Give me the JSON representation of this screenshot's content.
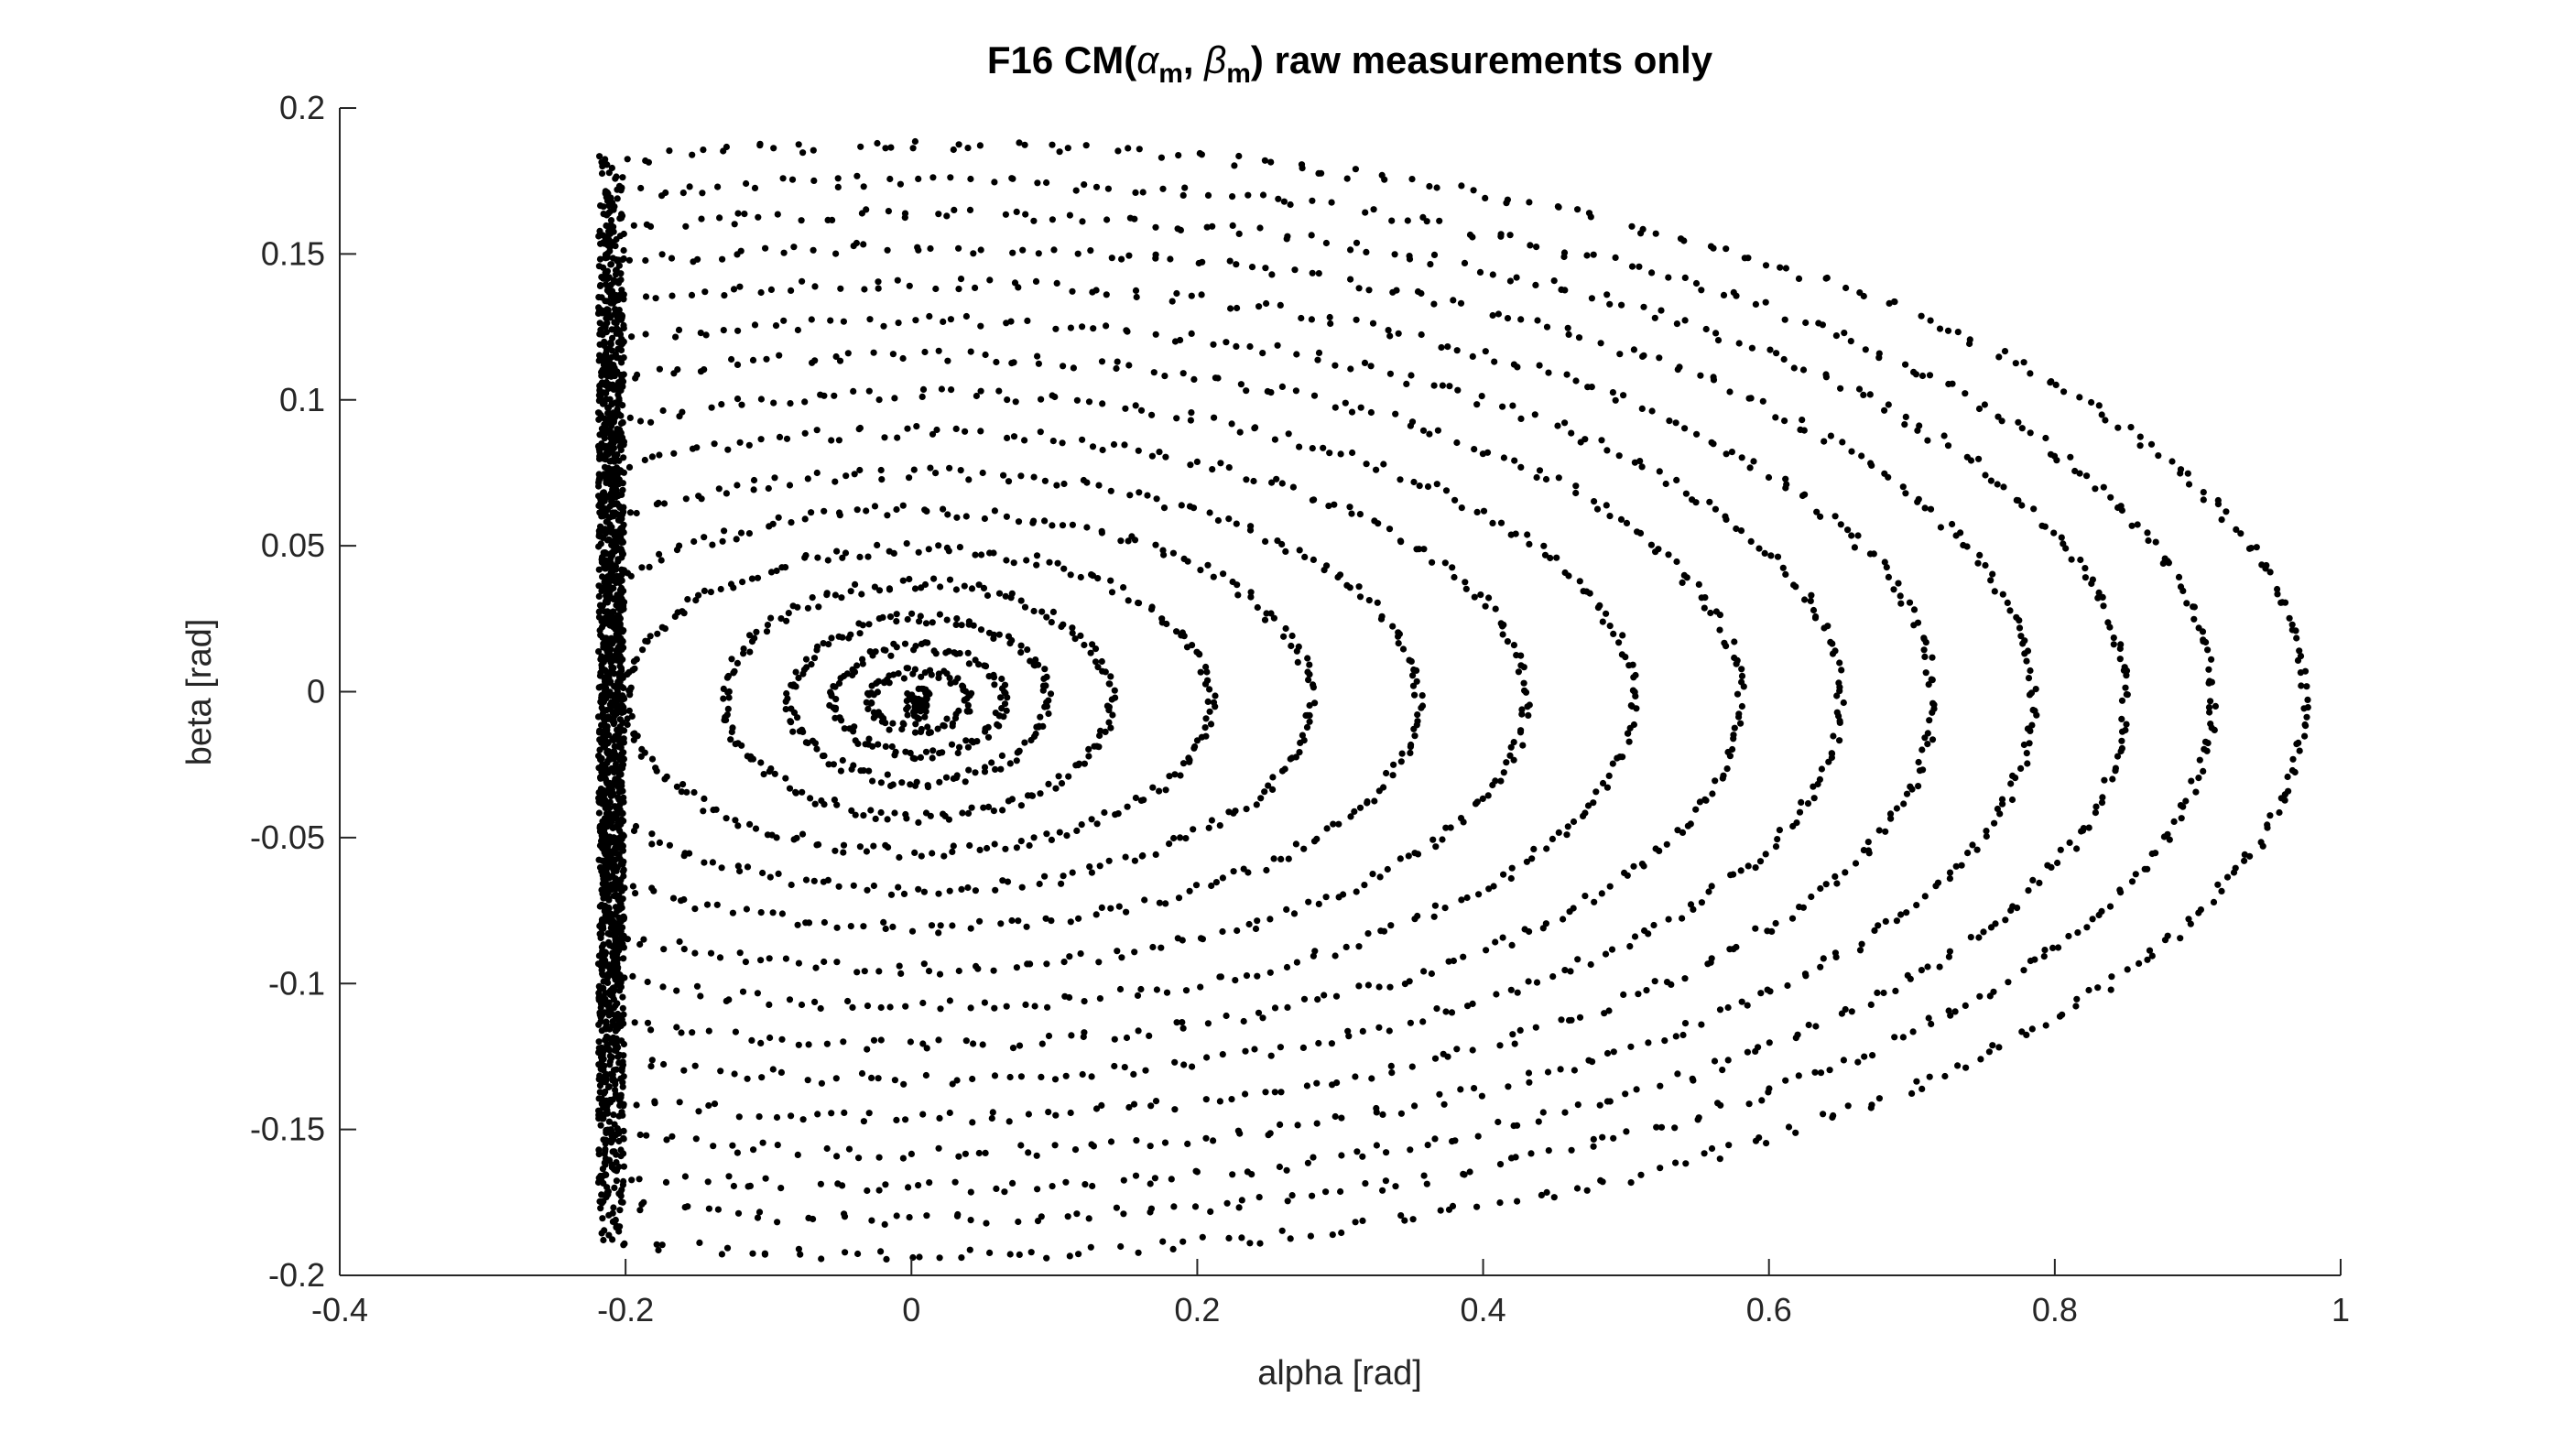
{
  "chart_data": {
    "type": "scatter",
    "title": {
      "prefix": "F16 CM(",
      "alpha_symbol": "α",
      "sub": "m",
      "separator": ", ",
      "beta_symbol": "β",
      "suffix": ") raw measurements only"
    },
    "xlabel": "alpha [rad]",
    "ylabel": "beta [rad]",
    "xlim": [
      -0.4,
      1
    ],
    "ylim": [
      -0.2,
      0.2
    ],
    "xticks": [
      -0.4,
      -0.2,
      0,
      0.2,
      0.4,
      0.6,
      0.8,
      1
    ],
    "xtick_labels": [
      "-0.4",
      "-0.2",
      "0",
      "0.2",
      "0.4",
      "0.6",
      "0.8",
      "1"
    ],
    "yticks": [
      -0.2,
      -0.15,
      -0.1,
      -0.05,
      0,
      0.05,
      0.1,
      0.15,
      0.2
    ],
    "ytick_labels": [
      "-0.2",
      "-0.15",
      "-0.1",
      "-0.05",
      "0",
      "0.05",
      "0.1",
      "0.15",
      "0.2"
    ],
    "grid": false,
    "marker_color": "#000000",
    "series": [
      {
        "name": "raw measurements",
        "description": "nested elliptical orbits clipped at alpha ≈ -0.21 (left wall), spiralling into center ≈ (0.005, -0.003)",
        "orbits": [
          {
            "a": 0.035,
            "b": 0.01,
            "n": 80
          },
          {
            "a": 0.06,
            "b": 0.018,
            "n": 110
          },
          {
            "a": 0.09,
            "b": 0.028,
            "n": 140
          },
          {
            "a": 0.135,
            "b": 0.04,
            "n": 170
          },
          {
            "a": 0.205,
            "b": 0.052,
            "n": 200
          },
          {
            "a": 0.275,
            "b": 0.065,
            "n": 230
          },
          {
            "a": 0.35,
            "b": 0.078,
            "n": 260
          },
          {
            "a": 0.425,
            "b": 0.092,
            "n": 290
          },
          {
            "a": 0.5,
            "b": 0.105,
            "n": 320
          },
          {
            "a": 0.575,
            "b": 0.118,
            "n": 350
          },
          {
            "a": 0.645,
            "b": 0.13,
            "n": 380
          },
          {
            "a": 0.71,
            "b": 0.143,
            "n": 410
          },
          {
            "a": 0.78,
            "b": 0.155,
            "n": 440
          },
          {
            "a": 0.845,
            "b": 0.167,
            "n": 470
          },
          {
            "a": 0.905,
            "b": 0.178,
            "n": 500
          },
          {
            "a": 0.97,
            "b": 0.19,
            "n": 530
          }
        ],
        "center": [
          0.005,
          -0.003
        ],
        "left_wall_alpha": -0.215,
        "core_cluster": {
          "x": 0.005,
          "y": -0.004,
          "n": 60
        }
      }
    ]
  }
}
